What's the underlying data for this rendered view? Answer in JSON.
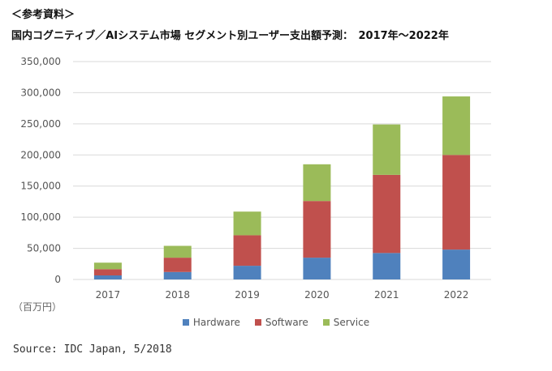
{
  "header": {
    "label": "＜参考資料＞",
    "title": "国内コグニティブ／AIシステム市場 セグメント別ユーザー支出額予測：　2017年～2022年"
  },
  "unit_label": "（百万円）",
  "source": "Source: IDC Japan, 5/2018",
  "chart_data": {
    "type": "bar",
    "stacked": true,
    "title": "国内コグニティブ／AIシステム市場 セグメント別ユーザー支出額予測：　2017年～2022年",
    "categories": [
      "2017",
      "2018",
      "2019",
      "2020",
      "2021",
      "2022"
    ],
    "series": [
      {
        "name": "Hardware",
        "color": "#4f81bd",
        "values": [
          6500,
          12000,
          22000,
          35000,
          42500,
          48000
        ]
      },
      {
        "name": "Software",
        "color": "#c0504d",
        "values": [
          10000,
          23000,
          49000,
          91000,
          125500,
          152000
        ]
      },
      {
        "name": "Service",
        "color": "#9bbb59",
        "values": [
          10500,
          19000,
          38000,
          59000,
          81000,
          94000
        ]
      }
    ],
    "ylim": [
      0,
      350000
    ],
    "yticks": [
      "0",
      "50,000",
      "100,000",
      "150,000",
      "200,000",
      "250,000",
      "300,000",
      "350,000"
    ],
    "ylabel": "（百万円）",
    "xlabel": "",
    "grid": true,
    "legend": "bottom"
  }
}
